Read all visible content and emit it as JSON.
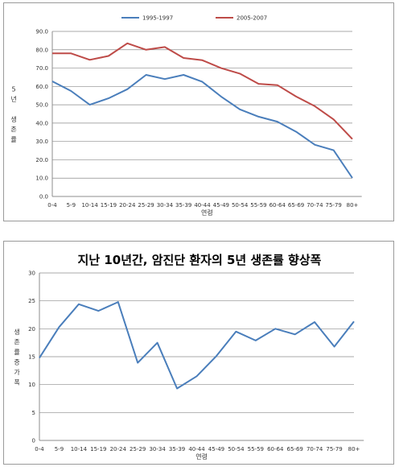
{
  "colors": {
    "series_1": "#4a7ebb",
    "series_2": "#be4b48",
    "grid": "#8c8c8c",
    "axis": "#8c8c8c"
  },
  "chart_data": [
    {
      "type": "line",
      "title": "",
      "xlabel": "연령",
      "ylabel": "5년 생존률",
      "ylim": [
        0,
        90
      ],
      "y_ticks": [
        "0.0",
        "10.0",
        "20.0",
        "30.0",
        "40.0",
        "50.0",
        "60.0",
        "70.0",
        "80.0",
        "90.0"
      ],
      "grid": true,
      "legend_position": "top",
      "categories": [
        "0-4",
        "5-9",
        "10-14",
        "15-19",
        "20-24",
        "25-29",
        "30-34",
        "35-39",
        "40-44",
        "45-49",
        "50-54",
        "55-59",
        "60-64",
        "65-69",
        "70-74",
        "75-79",
        "80+"
      ],
      "series": [
        {
          "name": "1995-1997",
          "color": "#4a7ebb",
          "values": [
            62.8,
            57.5,
            50.0,
            53.5,
            58.5,
            66.3,
            64.0,
            66.3,
            62.5,
            54.5,
            47.5,
            43.5,
            40.8,
            35.3,
            28.2,
            25.2,
            10.1
          ]
        },
        {
          "name": "2005-2007",
          "color": "#be4b48",
          "values": [
            78.0,
            78.0,
            74.5,
            76.6,
            83.5,
            80.0,
            81.5,
            75.5,
            74.3,
            70.0,
            67.0,
            61.4,
            60.7,
            54.5,
            49.2,
            42.0,
            31.3
          ]
        }
      ]
    },
    {
      "type": "line",
      "title": "지난 10년간, 암진단 환자의 5년 생존률 향상폭",
      "xlabel": "연령",
      "ylabel": "생존률증가폭",
      "ylim": [
        0,
        30
      ],
      "y_ticks": [
        "0",
        "5",
        "10",
        "15",
        "20",
        "25",
        "30"
      ],
      "grid": true,
      "categories": [
        "0-4",
        "5-9",
        "10-14",
        "15-19",
        "20-24",
        "25-29",
        "30-34",
        "35-39",
        "40-44",
        "45-49",
        "50-54",
        "55-59",
        "60-64",
        "65-69",
        "70-74",
        "75-79",
        "80+"
      ],
      "series": [
        {
          "color": "#4a7ebb",
          "values": [
            14.8,
            20.3,
            24.4,
            23.2,
            24.8,
            13.9,
            17.5,
            9.3,
            11.5,
            15.1,
            19.5,
            17.9,
            20.0,
            19.0,
            21.2,
            16.8,
            21.3
          ]
        }
      ]
    }
  ]
}
